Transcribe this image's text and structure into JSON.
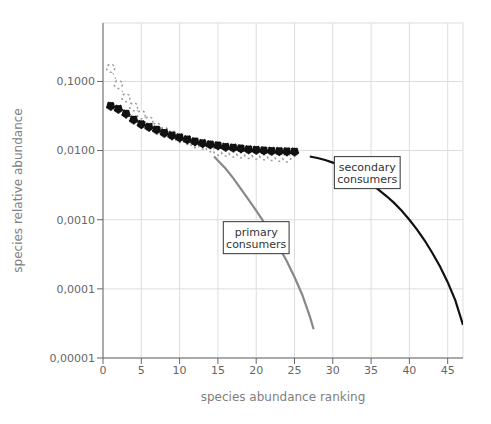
{
  "chart_data": {
    "type": "line",
    "xlabel": "species  abundance  ranking",
    "ylabel": "species relative abundance",
    "log": "y",
    "grid": true,
    "xlim": [
      0,
      47
    ],
    "ylim": [
      1e-05,
      0.7
    ],
    "xticks": [
      0,
      5,
      10,
      15,
      20,
      25,
      30,
      35,
      40,
      45
    ],
    "yticks": [
      {
        "value": 1e-05,
        "label": "0,00001"
      },
      {
        "value": 0.0001,
        "label": "0,0001"
      },
      {
        "value": 0.001,
        "label": "0,0010"
      },
      {
        "value": 0.01,
        "label": "0,0100"
      },
      {
        "value": 0.1,
        "label": "0,1000"
      }
    ],
    "series": [
      {
        "color": "#999999",
        "marker": "open_circle",
        "line_style": "dotted",
        "x": [
          1,
          2,
          3,
          4,
          5,
          6,
          7,
          8,
          9,
          10,
          11,
          12,
          13,
          14,
          15,
          16,
          17,
          18,
          19,
          20,
          21,
          22,
          23,
          24
        ],
        "values": [
          0.155,
          0.09,
          0.058,
          0.043,
          0.033,
          0.027,
          0.022,
          0.019,
          0.017,
          0.015,
          0.014,
          0.0125,
          0.012,
          0.011,
          0.0098,
          0.0095,
          0.0092,
          0.009,
          0.0088,
          0.0086,
          0.0084,
          0.0082,
          0.008,
          0.0078
        ]
      },
      {
        "color": "#111111",
        "marker": "circle",
        "line_style": "dotted",
        "x": [
          1,
          2,
          3,
          4,
          5,
          6,
          7,
          8,
          9,
          10,
          11,
          12,
          13,
          14,
          15,
          16,
          17,
          18,
          19,
          20,
          21,
          22,
          23,
          24,
          25
        ],
        "values": [
          0.044,
          0.04,
          0.034,
          0.028,
          0.024,
          0.022,
          0.02,
          0.018,
          0.0165,
          0.0155,
          0.0145,
          0.0135,
          0.0128,
          0.0122,
          0.0118,
          0.0113,
          0.011,
          0.0107,
          0.0104,
          0.0102,
          0.01,
          0.0099,
          0.0098,
          0.0097,
          0.0096
        ]
      },
      {
        "color": "#888888",
        "marker": "none",
        "line_style": "solid",
        "x": [
          14.5,
          15,
          16,
          17,
          18,
          19,
          20,
          21,
          22,
          23,
          24,
          25,
          26,
          27,
          27.5
        ],
        "values": [
          0.0082,
          0.0072,
          0.0055,
          0.004,
          0.0028,
          0.00195,
          0.00135,
          0.00092,
          0.00062,
          0.0004,
          0.00025,
          0.000148,
          8.3e-05,
          4e-05,
          2.6e-05
        ]
      },
      {
        "color": "#111111",
        "marker": "none",
        "line_style": "solid",
        "x": [
          27,
          28,
          29,
          30,
          31,
          32,
          33,
          34,
          35,
          36,
          37,
          38,
          39,
          40,
          41,
          42,
          43,
          44,
          45,
          46,
          47
        ],
        "values": [
          0.0082,
          0.0078,
          0.0073,
          0.0067,
          0.006,
          0.0053,
          0.0046,
          0.0039,
          0.0033,
          0.0027,
          0.0022,
          0.00175,
          0.00135,
          0.001,
          0.00072,
          0.0005,
          0.00033,
          0.00021,
          0.000125,
          6.8e-05,
          3e-05
        ]
      }
    ],
    "annotations": [
      {
        "text": "primary\nconsumers",
        "x": 20.0,
        "y": 0.00055
      },
      {
        "text": "secondary\nconsumers",
        "x": 34.5,
        "y": 0.0048
      }
    ]
  }
}
